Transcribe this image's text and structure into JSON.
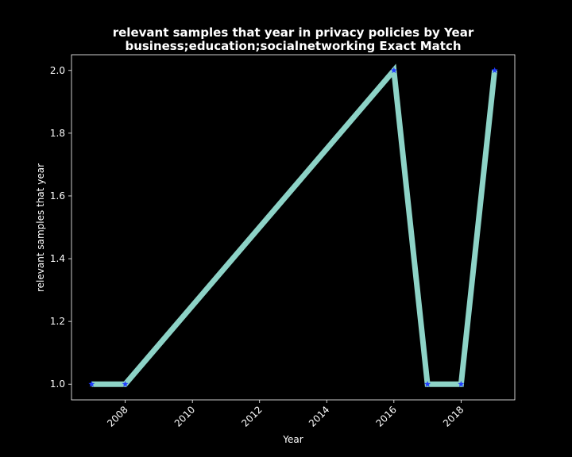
{
  "chart_data": {
    "type": "line",
    "title": "relevant samples that year in privacy policies by Year",
    "subtitle": "business;education;socialnetworking Exact Match",
    "xlabel": "Year",
    "ylabel": "relevant samples that year",
    "x": [
      2007,
      2008,
      2016,
      2017,
      2018,
      2019
    ],
    "series": [
      {
        "values": [
          1.0,
          1.0,
          2.0,
          1.0,
          1.0,
          2.0
        ]
      }
    ],
    "xlim": [
      2006.4,
      2019.6
    ],
    "ylim": [
      0.95,
      2.05
    ],
    "xticks": [
      2008,
      2010,
      2012,
      2014,
      2016,
      2018
    ],
    "yticks": [
      1.0,
      1.2,
      1.4,
      1.6,
      1.8,
      2.0
    ],
    "xtick_labels": [
      "2008",
      "2010",
      "2012",
      "2014",
      "2016",
      "2018"
    ],
    "ytick_labels": [
      "1.0",
      "1.2",
      "1.4",
      "1.6",
      "1.8",
      "2.0"
    ],
    "grid": false,
    "legend": "none",
    "colors": {
      "background": "#000000",
      "line": "#8dd3c7",
      "marker": "#1f3cff",
      "axis": "#ffffff"
    },
    "marker": "star-icon"
  }
}
